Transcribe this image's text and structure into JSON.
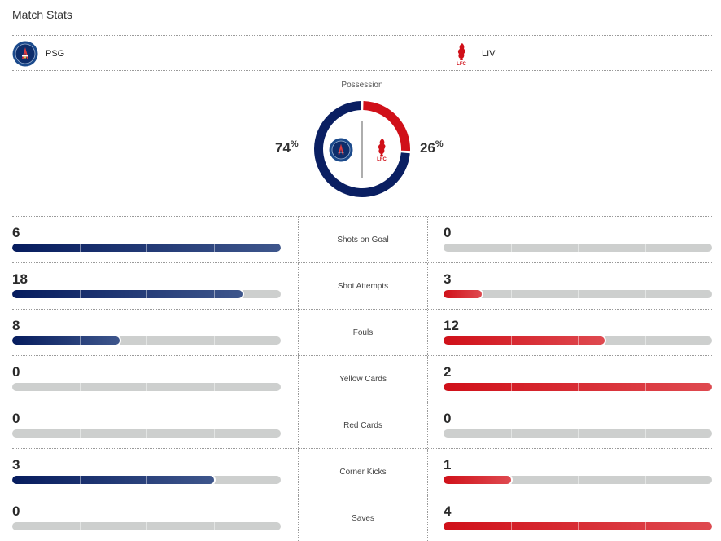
{
  "header": {
    "title": "Match Stats"
  },
  "teams": {
    "home": {
      "abbr": "PSG",
      "logo": "psg-crest-icon",
      "color": "#0a1f62"
    },
    "away": {
      "abbr": "LIV",
      "logo": "lfc-crest-icon",
      "color": "#d01019"
    }
  },
  "possession": {
    "label": "Possession",
    "home_pct": 74,
    "away_pct": 26,
    "home_text": "74",
    "away_text": "26",
    "pct_symbol": "%"
  },
  "stats": [
    {
      "label": "Shots on Goal",
      "home": 6,
      "away": 0
    },
    {
      "label": "Shot Attempts",
      "home": 18,
      "away": 3
    },
    {
      "label": "Fouls",
      "home": 8,
      "away": 12
    },
    {
      "label": "Yellow Cards",
      "home": 0,
      "away": 2
    },
    {
      "label": "Red Cards",
      "home": 0,
      "away": 0
    },
    {
      "label": "Corner Kicks",
      "home": 3,
      "away": 1
    },
    {
      "label": "Saves",
      "home": 0,
      "away": 4
    }
  ],
  "colors": {
    "home_start": "#061c5e",
    "home_end": "#3e568c",
    "away_start": "#d01019",
    "away_end": "#df4a50",
    "empty": "#cdcfce"
  }
}
